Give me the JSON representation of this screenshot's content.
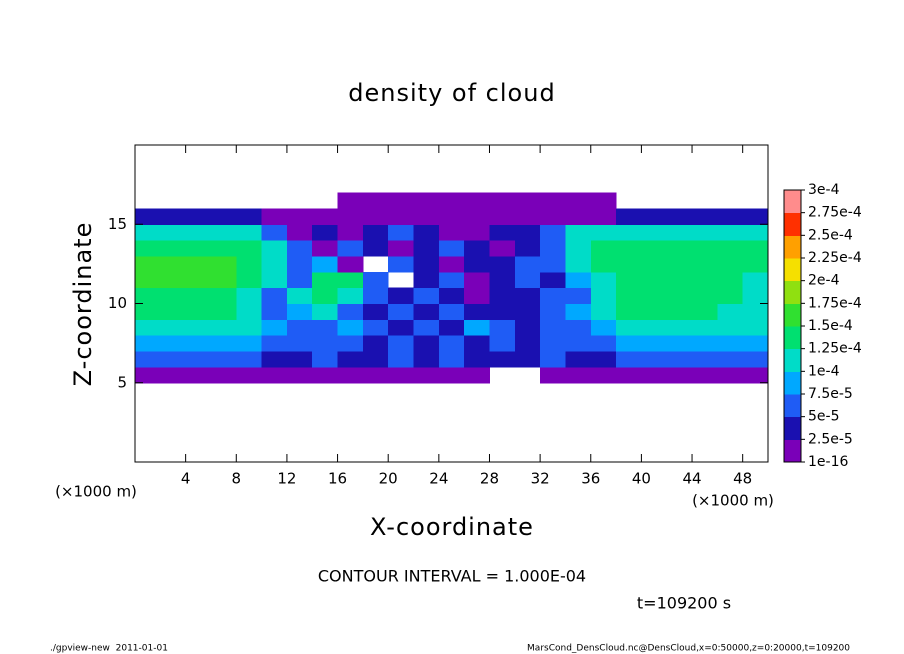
{
  "chart_data": {
    "type": "heatmap",
    "title": "density of cloud",
    "xlabel": "X-coordinate",
    "ylabel": "Z-coordinate",
    "y_unit": "(×1000 m)",
    "x_unit": "(×1000 m)",
    "annotation": "CONTOUR INTERVAL = 1.000E-04",
    "time_label": "t=109200 s",
    "footer_left": "./gpview-new  2011-01-01",
    "footer_right": "MarsCond_DensCloud.nc@DensCloud,x=0:50000,z=0:20000,t=109200",
    "xlim": [
      0,
      50
    ],
    "ylim": [
      0,
      20
    ],
    "xticks": [
      4,
      8,
      12,
      16,
      20,
      24,
      28,
      32,
      36,
      40,
      44,
      48
    ],
    "yticks": [
      5,
      10,
      15
    ],
    "x_edges": [
      0,
      2,
      4,
      6,
      8,
      10,
      12,
      14,
      16,
      18,
      20,
      22,
      24,
      26,
      28,
      30,
      32,
      34,
      36,
      38,
      40,
      42,
      44,
      46,
      48,
      50
    ],
    "y_edges": [
      5,
      6,
      7,
      8,
      9,
      10,
      11,
      12,
      13,
      14,
      15,
      16,
      17
    ],
    "levels": [
      {
        "value": 1e-16,
        "label": "1e-16"
      },
      {
        "value": 2.5e-05,
        "label": "2.5e-5"
      },
      {
        "value": 5e-05,
        "label": "5e-5"
      },
      {
        "value": 7.5e-05,
        "label": "7.5e-5"
      },
      {
        "value": 0.0001,
        "label": "1e-4"
      },
      {
        "value": 0.000125,
        "label": "1.25e-4"
      },
      {
        "value": 0.00015,
        "label": "1.5e-4"
      },
      {
        "value": 0.000175,
        "label": "1.75e-4"
      },
      {
        "value": 0.0002,
        "label": "2e-4"
      },
      {
        "value": 0.000225,
        "label": "2.25e-4"
      },
      {
        "value": 0.00025,
        "label": "2.5e-4"
      },
      {
        "value": 0.000275,
        "label": "2.75e-4"
      },
      {
        "value": 0.0003,
        "label": "3e-4"
      }
    ],
    "colors": [
      "#7a00b8",
      "#1a10b0",
      "#1f5cf5",
      "#00a8ff",
      "#00dcc8",
      "#00e070",
      "#30e030",
      "#90e010",
      "#f5e000",
      "#ffa000",
      "#ff3000",
      "#ff8c8c"
    ],
    "values": [
      [
        1e-05,
        1e-05,
        1e-05,
        1e-05,
        1e-05,
        1e-05,
        1e-05,
        1e-05,
        1e-05,
        1e-05,
        1e-05,
        1e-05,
        1e-05,
        1e-05,
        null,
        null,
        1e-05,
        1e-05,
        1e-05,
        1e-05,
        1e-05,
        1e-05,
        1e-05,
        1e-05,
        1e-05
      ],
      [
        6e-05,
        6e-05,
        6e-05,
        6e-05,
        6e-05,
        3.5e-05,
        3.5e-05,
        6e-05,
        3.5e-05,
        3.5e-05,
        6e-05,
        3.5e-05,
        6e-05,
        3.5e-05,
        3.5e-05,
        3.5e-05,
        6e-05,
        3.5e-05,
        3.5e-05,
        6e-05,
        6e-05,
        6e-05,
        6e-05,
        6e-05,
        6e-05
      ],
      [
        8.5e-05,
        8.5e-05,
        8.5e-05,
        8.5e-05,
        8.5e-05,
        6e-05,
        6e-05,
        6e-05,
        6e-05,
        3.5e-05,
        6e-05,
        3.5e-05,
        6e-05,
        3.5e-05,
        6e-05,
        3.5e-05,
        6e-05,
        6e-05,
        6e-05,
        8.5e-05,
        8.5e-05,
        8.5e-05,
        8.5e-05,
        8.5e-05,
        8.5e-05
      ],
      [
        0.00011,
        0.00011,
        0.00011,
        0.00011,
        0.00011,
        8.5e-05,
        6e-05,
        6e-05,
        8.5e-05,
        6e-05,
        3.5e-05,
        6e-05,
        3.5e-05,
        8.5e-05,
        6e-05,
        3.5e-05,
        6e-05,
        6e-05,
        8.5e-05,
        0.00011,
        0.00011,
        0.00011,
        0.00011,
        0.00011,
        0.00011
      ],
      [
        0.00014,
        0.00014,
        0.00014,
        0.00014,
        0.00011,
        6e-05,
        8.5e-05,
        0.00011,
        6e-05,
        3.5e-05,
        6e-05,
        3.5e-05,
        6e-05,
        3.5e-05,
        3.5e-05,
        3.5e-05,
        6e-05,
        8.5e-05,
        0.00011,
        0.00014,
        0.00014,
        0.00014,
        0.00014,
        0.00011,
        0.00011
      ],
      [
        0.00014,
        0.00014,
        0.00014,
        0.00014,
        0.00011,
        6e-05,
        0.00011,
        0.00014,
        0.00011,
        6e-05,
        3.5e-05,
        6e-05,
        3.5e-05,
        1e-05,
        3.5e-05,
        3.5e-05,
        6e-05,
        6e-05,
        0.00011,
        0.00014,
        0.00014,
        0.00014,
        0.00014,
        0.00014,
        0.00011
      ],
      [
        0.00016,
        0.00016,
        0.00016,
        0.00016,
        0.00014,
        0.00011,
        6e-05,
        0.00014,
        0.00014,
        6e-05,
        null,
        3.5e-05,
        6e-05,
        1e-05,
        3.5e-05,
        6e-05,
        3.5e-05,
        8.5e-05,
        0.00011,
        0.00014,
        0.00014,
        0.00014,
        0.00014,
        0.00014,
        0.00011
      ],
      [
        0.00016,
        0.00016,
        0.00016,
        0.00016,
        0.00014,
        0.00011,
        6e-05,
        8.5e-05,
        1e-05,
        null,
        6e-05,
        3.5e-05,
        1e-05,
        3.5e-05,
        3.5e-05,
        6e-05,
        6e-05,
        0.00011,
        0.00014,
        0.00014,
        0.00014,
        0.00014,
        0.00014,
        0.00014,
        0.00014
      ],
      [
        0.00014,
        0.00014,
        0.00014,
        0.00014,
        0.00014,
        0.00011,
        6e-05,
        1e-05,
        6e-05,
        3.5e-05,
        1e-05,
        3.5e-05,
        6e-05,
        3.5e-05,
        1e-05,
        3.5e-05,
        6e-05,
        0.00011,
        0.00014,
        0.00014,
        0.00014,
        0.00014,
        0.00014,
        0.00014,
        0.00014
      ],
      [
        0.00011,
        0.00011,
        0.00011,
        0.00011,
        0.00011,
        6e-05,
        1e-05,
        3.5e-05,
        1e-05,
        3.5e-05,
        6e-05,
        3.5e-05,
        1e-05,
        1e-05,
        3.5e-05,
        3.5e-05,
        6e-05,
        0.00011,
        0.00011,
        0.00011,
        0.00011,
        0.00011,
        0.00011,
        0.00011,
        0.00011
      ],
      [
        3.5e-05,
        3.5e-05,
        3.5e-05,
        3.5e-05,
        3.5e-05,
        1e-05,
        1e-05,
        1e-05,
        1e-05,
        1e-05,
        1e-05,
        1e-05,
        1e-05,
        1e-05,
        1e-05,
        1e-05,
        1e-05,
        1e-05,
        1e-05,
        3.5e-05,
        3.5e-05,
        3.5e-05,
        3.5e-05,
        3.5e-05,
        3.5e-05
      ],
      [
        null,
        null,
        null,
        null,
        null,
        null,
        null,
        null,
        1e-05,
        1e-05,
        1e-05,
        1e-05,
        1e-05,
        1e-05,
        1e-05,
        1e-05,
        1e-05,
        1e-05,
        1e-05,
        null,
        null,
        null,
        null,
        null,
        null
      ]
    ]
  }
}
